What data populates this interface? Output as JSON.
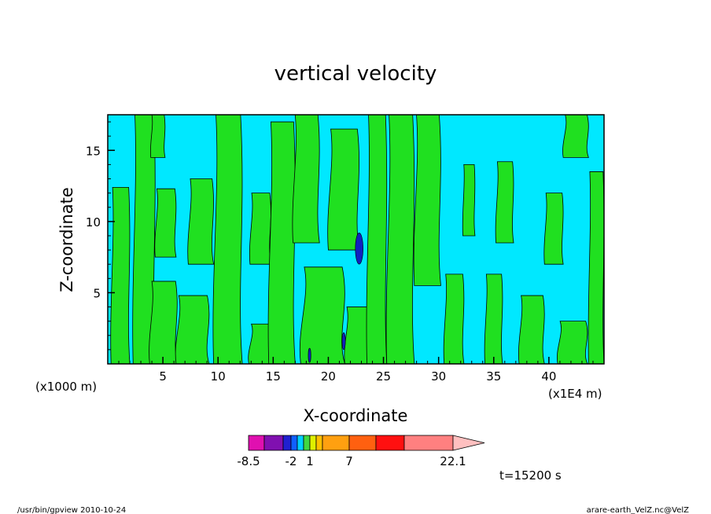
{
  "chart_data": {
    "type": "heatmap",
    "title": "vertical velocity",
    "xlabel": "X-coordinate",
    "ylabel": "Z-coordinate",
    "x_unit_left": "(x1000 m)",
    "x_unit_right": "(x1E4 m)",
    "xlim": [
      0,
      45
    ],
    "ylim": [
      0,
      17.5
    ],
    "x_ticks": [
      5,
      10,
      15,
      20,
      25,
      30,
      35,
      40
    ],
    "y_ticks": [
      5,
      10,
      15
    ],
    "x_tick_labels": [
      "5",
      "10",
      "15",
      "20",
      "25",
      "30",
      "35",
      "40"
    ],
    "y_tick_labels": [
      "5",
      "10",
      "15"
    ],
    "time_label": "t=15200 s",
    "colorbar": {
      "labels": [
        "-8.5",
        "-2",
        "1",
        "7",
        "22.1"
      ],
      "colors": [
        "#e010b0",
        "#8010b0",
        "#2020d0",
        "#1060ff",
        "#00d0ff",
        "#40d840",
        "#e0f000",
        "#ffc000",
        "#ffa010",
        "#ff6010",
        "#ff1010",
        "#ff8080",
        "#ffc0c0"
      ]
    },
    "fill_colors": {
      "negative": "#00e8ff",
      "positive": "#20e020",
      "strong_negative": "#1020c0",
      "strong_positive": "#ffe000"
    },
    "green_regions": [
      {
        "x0": 0.3,
        "x1": 2.0,
        "z0": 0,
        "z1": 12.4
      },
      {
        "x0": 2.3,
        "x1": 4.3,
        "z0": 0,
        "z1": 17.5
      },
      {
        "x0": 3.8,
        "x1": 6.3,
        "z0": 0,
        "z1": 5.8
      },
      {
        "x0": 4.3,
        "x1": 6.2,
        "z0": 7.5,
        "z1": 12.3
      },
      {
        "x0": 3.9,
        "x1": 5.2,
        "z0": 14.5,
        "z1": 17.5
      },
      {
        "x0": 6.2,
        "x1": 9.2,
        "z0": 0,
        "z1": 4.8
      },
      {
        "x0": 7.3,
        "x1": 9.6,
        "z0": 7.0,
        "z1": 13.0
      },
      {
        "x0": 9.6,
        "x1": 12.2,
        "z0": 0,
        "z1": 17.5
      },
      {
        "x0": 12.8,
        "x1": 15.6,
        "z0": 0,
        "z1": 2.8
      },
      {
        "x0": 12.9,
        "x1": 14.8,
        "z0": 7.0,
        "z1": 12.0
      },
      {
        "x0": 14.6,
        "x1": 17.0,
        "z0": 0,
        "z1": 17.0
      },
      {
        "x0": 16.8,
        "x1": 19.2,
        "z0": 8.5,
        "z1": 17.5
      },
      {
        "x0": 17.5,
        "x1": 21.5,
        "z0": 0,
        "z1": 6.8
      },
      {
        "x0": 20.0,
        "x1": 22.8,
        "z0": 8.0,
        "z1": 16.5
      },
      {
        "x0": 21.5,
        "x1": 23.8,
        "z0": 0,
        "z1": 4.0
      },
      {
        "x0": 23.5,
        "x1": 25.3,
        "z0": 0,
        "z1": 17.5
      },
      {
        "x0": 25.3,
        "x1": 27.8,
        "z0": 0,
        "z1": 17.5
      },
      {
        "x0": 27.8,
        "x1": 30.2,
        "z0": 5.5,
        "z1": 17.5
      },
      {
        "x0": 30.5,
        "x1": 32.3,
        "z0": 0,
        "z1": 6.3
      },
      {
        "x0": 32.2,
        "x1": 33.3,
        "z0": 9.0,
        "z1": 14.0
      },
      {
        "x0": 34.2,
        "x1": 35.8,
        "z0": 0,
        "z1": 6.3
      },
      {
        "x0": 35.2,
        "x1": 36.8,
        "z0": 8.5,
        "z1": 14.2
      },
      {
        "x0": 37.3,
        "x1": 39.6,
        "z0": 0,
        "z1": 4.8
      },
      {
        "x0": 39.6,
        "x1": 41.3,
        "z0": 7.0,
        "z1": 12.0
      },
      {
        "x0": 40.8,
        "x1": 43.5,
        "z0": 0,
        "z1": 3.0
      },
      {
        "x0": 41.3,
        "x1": 43.6,
        "z0": 14.5,
        "z1": 17.5
      },
      {
        "x0": 43.6,
        "x1": 45.0,
        "z0": 0,
        "z1": 13.5
      }
    ],
    "strong_negative_regions": [
      {
        "x": 22.8,
        "z": 8.1,
        "rx": 0.35,
        "rz": 1.1
      },
      {
        "x": 21.4,
        "z": 1.6,
        "rx": 0.15,
        "rz": 0.6
      },
      {
        "x": 18.3,
        "z": 0.6,
        "rx": 0.12,
        "rz": 0.5
      }
    ]
  },
  "footer": {
    "left": "/usr/bin/gpview   2010-10-24",
    "right": "arare-earth_VelZ.nc@VelZ"
  }
}
